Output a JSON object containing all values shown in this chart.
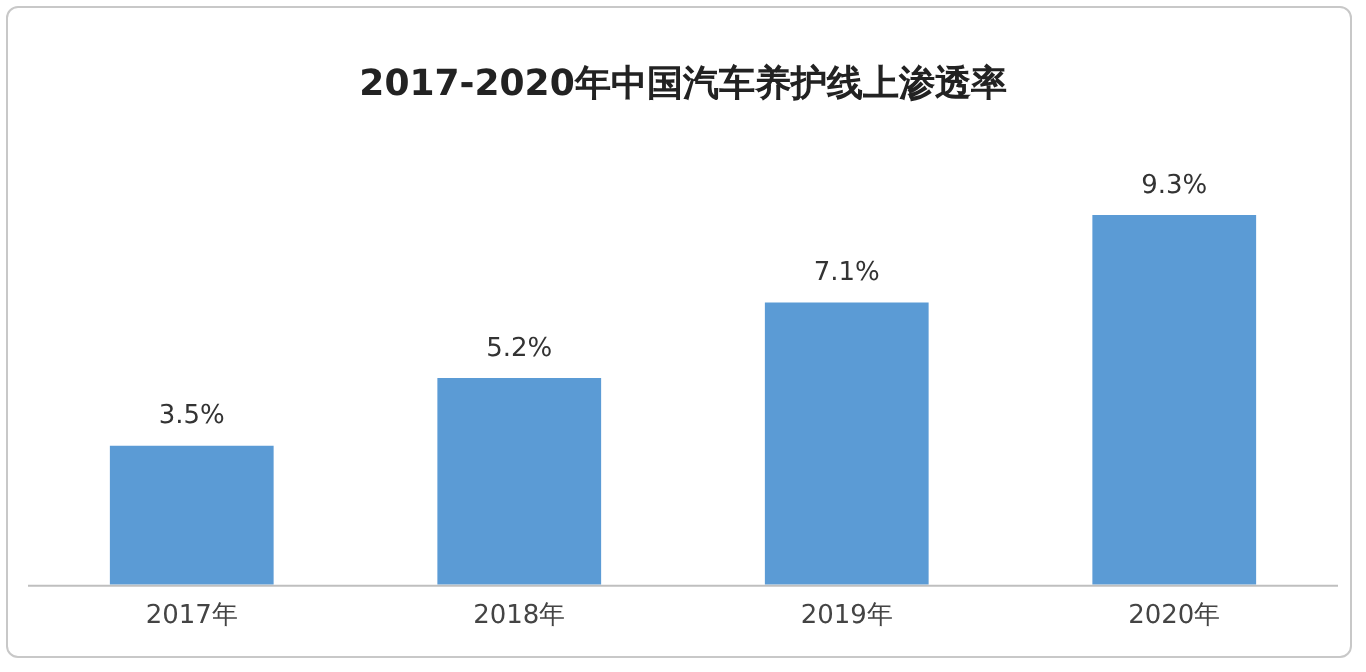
{
  "chart_data": {
    "type": "bar",
    "title": "2017-2020年中国汽车养护线上渗透率",
    "categories": [
      "2017年",
      "2018年",
      "2019年",
      "2020年"
    ],
    "values": [
      3.5,
      5.2,
      7.1,
      9.3
    ],
    "value_labels": [
      "3.5%",
      "5.2%",
      "7.1%",
      "9.3%"
    ],
    "color": "#5b9bd5",
    "grid": false,
    "legend": false
  }
}
